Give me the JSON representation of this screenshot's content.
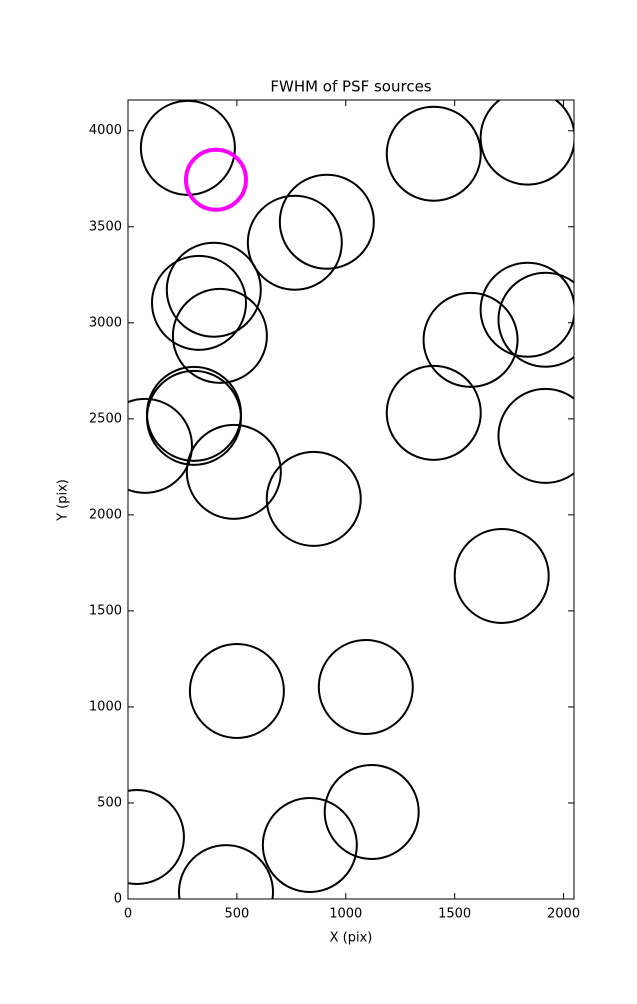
{
  "chart_data": {
    "type": "scatter",
    "title": "FWHM of PSF sources",
    "xlabel": "X (pix)",
    "ylabel": "Y (pix)",
    "xlim": [
      0,
      2048
    ],
    "ylim": [
      0,
      4160
    ],
    "xticks": [
      0,
      500,
      1000,
      1500,
      2000
    ],
    "yticks": [
      0,
      500,
      1000,
      1500,
      2000,
      2500,
      3000,
      3500,
      4000
    ],
    "series": [
      {
        "color": "#000000",
        "x": [
          275,
          1404,
          1835,
          913,
          766,
          394,
          326,
          422,
          1573,
          1835,
          1917,
          303,
          303,
          78,
          1404,
          1917,
          486,
          853,
          1716,
          500,
          1092,
          1119,
          835,
          41,
          450
        ],
        "y": [
          3911,
          3880,
          3964,
          3526,
          3417,
          3172,
          3104,
          2932,
          2911,
          3068,
          3016,
          2526,
          2505,
          2359,
          2531,
          2411,
          2224,
          2083,
          1682,
          1083,
          1104,
          453,
          281,
          323,
          36
        ]
      },
      {
        "color": "#ff00ff",
        "x": [
          404
        ],
        "y": [
          3745
        ]
      }
    ]
  }
}
